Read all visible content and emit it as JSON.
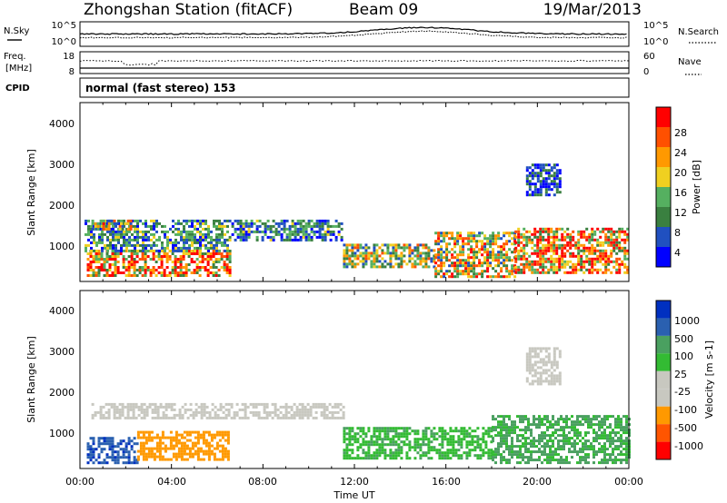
{
  "header": {
    "station": "Zhongshan Station (fitACF)",
    "beam": "Beam 09",
    "date": "19/Mar/2013"
  },
  "noise_panel": {
    "left_label": "N.Sky",
    "left_ticks": [
      "10^5",
      "10^0"
    ],
    "right_label": "N.Search",
    "right_ticks": [
      "10^5",
      "10^0"
    ]
  },
  "freq_panel": {
    "left_label_1": "Freq.",
    "left_label_2": "[MHz]",
    "left_ticks": [
      "18",
      "8"
    ],
    "right_label": "Nave",
    "right_ticks": [
      "60",
      "0"
    ]
  },
  "cpid_panel": {
    "label": "CPID",
    "text": "normal (fast stereo) 153"
  },
  "x_axis": {
    "ticks": [
      "00:00",
      "04:00",
      "08:00",
      "12:00",
      "16:00",
      "20:00",
      "00:00"
    ],
    "label": "Time UT"
  },
  "colors": {
    "power": [
      "#0000ff",
      "#2050c0",
      "#3a8040",
      "#55b060",
      "#f0d020",
      "#ff9900",
      "#ff5000",
      "#ff0000"
    ],
    "velocity": [
      "#ff0000",
      "#ff5500",
      "#ff9900",
      "#c8c8c0",
      "#c8c8c0",
      "#33bb33",
      "#4aa060",
      "#2a60b0",
      "#0030c0"
    ]
  },
  "chart_data": [
    {
      "type": "heatmap",
      "name": "power",
      "ylabel": "Slant Range [km]",
      "ylim": [
        180,
        4600
      ],
      "yticks": [
        "1000",
        "2000",
        "3000",
        "4000"
      ],
      "xlim": [
        0,
        24
      ],
      "colorbar": {
        "label": "Power [dB]",
        "range": [
          0,
          32
        ],
        "ticks": [
          "4",
          "8",
          "12",
          "16",
          "20",
          "24",
          "28"
        ]
      },
      "regions": [
        {
          "t0": 0.3,
          "t1": 6.5,
          "r0": 300,
          "r1": 950,
          "value": 22
        },
        {
          "t0": 0.2,
          "t1": 6.5,
          "r0": 950,
          "r1": 1700,
          "value": 10
        },
        {
          "t0": 0.5,
          "t1": 2.2,
          "r0": 1450,
          "r1": 1700,
          "value": 17
        },
        {
          "t0": 6.5,
          "t1": 11.5,
          "r0": 1200,
          "r1": 1700,
          "value": 9
        },
        {
          "t0": 11.5,
          "t1": 15.5,
          "r0": 500,
          "r1": 1100,
          "value": 16
        },
        {
          "t0": 15.5,
          "t1": 19.0,
          "r0": 300,
          "r1": 1400,
          "value": 18
        },
        {
          "t0": 19.0,
          "t1": 24.0,
          "r0": 350,
          "r1": 1500,
          "value": 22
        },
        {
          "t0": 19.5,
          "t1": 21.0,
          "r0": 2300,
          "r1": 3100,
          "value": 5
        }
      ]
    },
    {
      "type": "heatmap",
      "name": "velocity",
      "ylabel": "Slant Range [km]",
      "ylim": [
        180,
        4600
      ],
      "yticks": [
        "1000",
        "2000",
        "3000",
        "4000"
      ],
      "xlim": [
        0,
        24
      ],
      "colorbar": {
        "label": "Velocity [m s-1]",
        "ticks": [
          "1000",
          "500",
          "100",
          "25",
          "-25",
          "-100",
          "-500",
          "-1000"
        ]
      },
      "regions": [
        {
          "t0": 0.3,
          "t1": 2.5,
          "r0": 300,
          "r1": 950,
          "value": 600
        },
        {
          "t0": 2.5,
          "t1": 6.5,
          "r0": 400,
          "r1": 1100,
          "value": -150
        },
        {
          "t0": 0.5,
          "t1": 11.5,
          "r0": 1400,
          "r1": 1800,
          "value": 0
        },
        {
          "t0": 11.5,
          "t1": 18.0,
          "r0": 400,
          "r1": 1200,
          "value": 80
        },
        {
          "t0": 18.0,
          "t1": 24.0,
          "r0": 300,
          "r1": 1500,
          "value": 120
        },
        {
          "t0": 19.5,
          "t1": 21.0,
          "r0": 2300,
          "r1": 3200,
          "value": 0
        }
      ]
    }
  ]
}
